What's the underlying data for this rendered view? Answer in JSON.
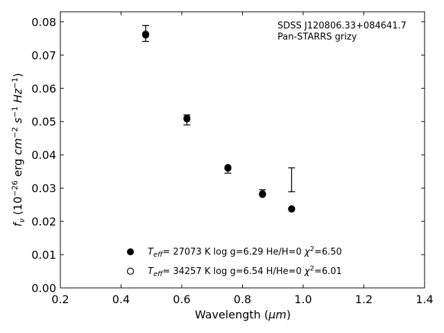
{
  "chart_data": {
    "type": "scatter",
    "xlabel_main": "Wavelength (",
    "xlabel_unit": "μm",
    "xlabel_close": ")",
    "ylabel": "f_ν (10^-26 erg cm^-2 s^-1 Hz^-1)",
    "xlim": [
      0.2,
      1.4
    ],
    "ylim": [
      0.0,
      0.083
    ],
    "x_ticks": [
      0.2,
      0.4,
      0.6,
      0.8,
      1.0,
      1.2,
      1.4
    ],
    "x_tick_labels": [
      "0.2",
      "0.4",
      "0.6",
      "0.8",
      "1.0",
      "1.2",
      "1.4"
    ],
    "y_ticks": [
      0.0,
      0.01,
      0.02,
      0.03,
      0.04,
      0.05,
      0.06,
      0.07,
      0.08
    ],
    "y_tick_labels": [
      "0.00",
      "0.01",
      "0.02",
      "0.03",
      "0.04",
      "0.05",
      "0.06",
      "0.07",
      "0.08"
    ],
    "grid": false,
    "legend_position": "lower-center",
    "annotations": [
      "SDSS J120806.33+084641.7",
      "Pan-STARRS grizy"
    ],
    "observed": {
      "x": [
        0.481,
        0.617,
        0.752,
        0.866,
        0.962
      ],
      "y": [
        0.0765,
        0.0505,
        0.0354,
        0.0289,
        0.0325
      ],
      "yerr": [
        0.0024,
        0.0015,
        0.0009,
        0.0006,
        0.0036
      ]
    },
    "series": [
      {
        "name": "T_eff= 27073 K  log g=6.29  He/H=0  χ²=6.50",
        "marker": "filled-circle",
        "x": [
          0.481,
          0.617,
          0.752,
          0.866,
          0.962
        ],
        "y": [
          0.076,
          0.0508,
          0.0362,
          0.0283,
          0.0238
        ]
      },
      {
        "name": "T_eff= 34257 K  log g=6.54  H/He=0  χ²=6.01",
        "marker": "open-circle",
        "x": [
          0.481,
          0.617,
          0.752,
          0.866,
          0.962
        ],
        "y": [
          0.0763,
          0.051,
          0.036,
          0.0281,
          0.0237
        ]
      }
    ],
    "legend": [
      {
        "teff_value": "= 27073 K  log g=6.29  He/H=0  ",
        "chi_value": "=6.50"
      },
      {
        "teff_value": "= 34257 K  log g=6.54  H/He=0  ",
        "chi_value": "=6.01"
      }
    ]
  }
}
